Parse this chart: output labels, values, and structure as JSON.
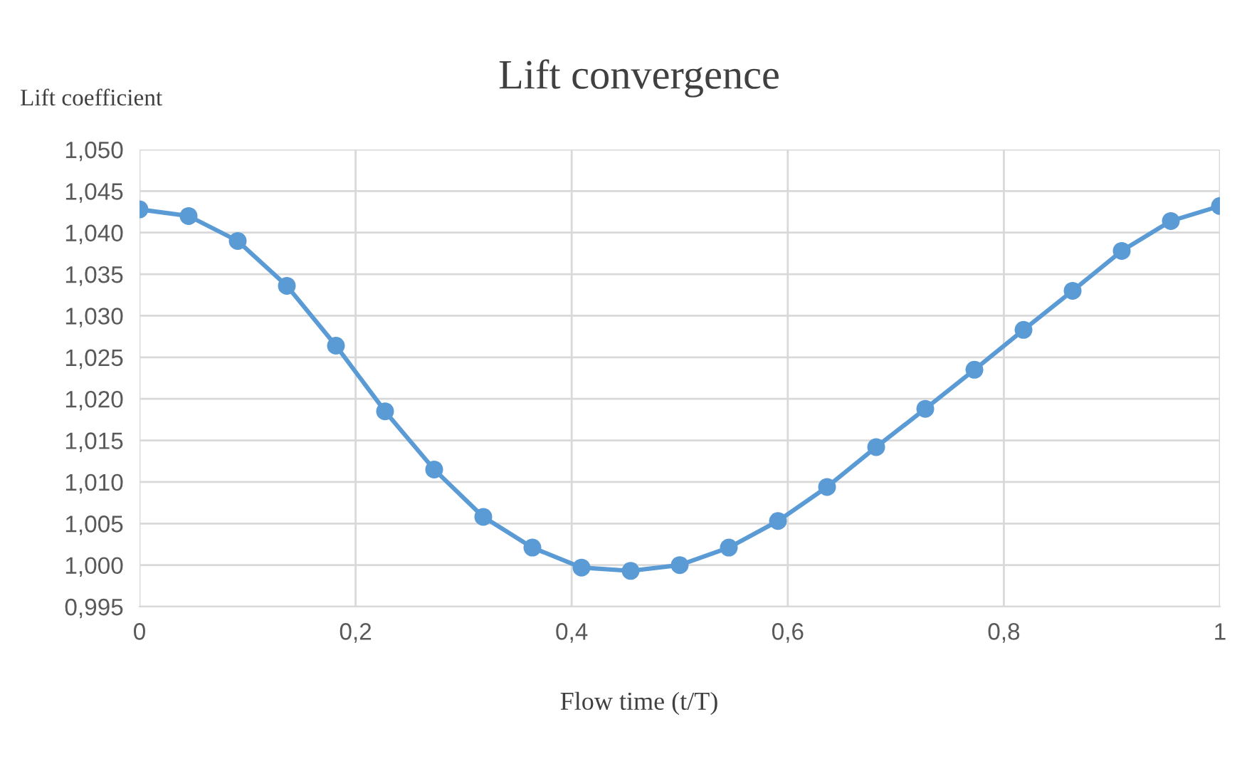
{
  "chart_data": {
    "type": "line",
    "title": "Lift convergence",
    "xlabel": "Flow time (t/T)",
    "ylabel": "Lift coefficient",
    "x": [
      0,
      0.04545,
      0.09091,
      0.13636,
      0.18182,
      0.22727,
      0.27273,
      0.31818,
      0.36364,
      0.40909,
      0.45455,
      0.5,
      0.54545,
      0.59091,
      0.63636,
      0.68182,
      0.72727,
      0.77273,
      0.81818,
      0.86364,
      0.90909,
      0.95455,
      1
    ],
    "series": [
      {
        "color": "#5b9bd5",
        "values": [
          1.0428,
          1.042,
          1.039,
          1.0336,
          1.0264,
          1.0185,
          1.0115,
          1.0058,
          1.0021,
          0.9997,
          0.9993,
          1.0,
          1.0021,
          1.0053,
          1.0094,
          1.0142,
          1.0188,
          1.0235,
          1.0283,
          1.033,
          1.0378,
          1.0414,
          1.0432
        ]
      }
    ],
    "xlim": [
      0,
      1
    ],
    "ylim": [
      0.995,
      1.05
    ],
    "xticks": [
      0,
      {
        "value": 0.2,
        "label": "0,2"
      },
      {
        "value": 0.4,
        "label": "0,4"
      },
      {
        "value": 0.6,
        "label": "0,6"
      },
      {
        "value": 0.8,
        "label": "0,8"
      },
      1
    ],
    "yticks": [
      {
        "value": 0.995,
        "label": "0,995"
      },
      {
        "value": 1.0,
        "label": "1,000"
      },
      {
        "value": 1.005,
        "label": "1,005"
      },
      {
        "value": 1.01,
        "label": "1,010"
      },
      {
        "value": 1.015,
        "label": "1,015"
      },
      {
        "value": 1.02,
        "label": "1,020"
      },
      {
        "value": 1.025,
        "label": "1,025"
      },
      {
        "value": 1.03,
        "label": "1,030"
      },
      {
        "value": 1.035,
        "label": "1,035"
      },
      {
        "value": 1.04,
        "label": "1,040"
      },
      {
        "value": 1.045,
        "label": "1,045"
      },
      {
        "value": 1.05,
        "label": "1,050"
      }
    ],
    "grid": true,
    "marker": "circle",
    "line_style": "solid"
  }
}
